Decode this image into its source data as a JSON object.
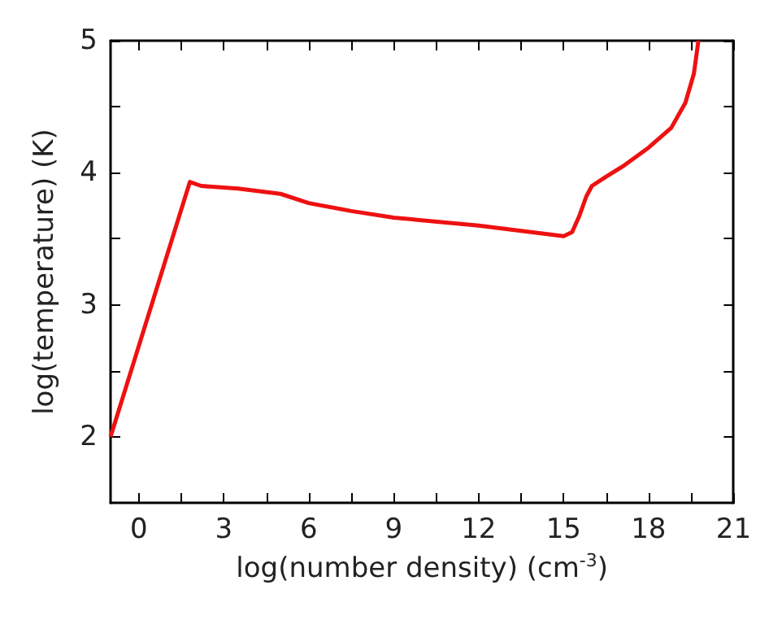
{
  "chart_data": {
    "type": "line",
    "xlabel": "log(number density) (cm$^{-3}$)",
    "ylabel": "log(temperature) (K)",
    "x": [
      -1,
      1.8,
      2.2,
      3.5,
      5,
      6,
      7.5,
      9,
      12,
      15,
      15.3,
      15.55,
      15.8,
      16,
      16.5,
      17.1,
      18,
      18.8,
      19.3,
      19.6,
      19.76
    ],
    "series": [
      {
        "color": "#ee1111",
        "values": [
          2,
          3.93,
          3.9,
          3.88,
          3.84,
          3.77,
          3.71,
          3.66,
          3.6,
          3.52,
          3.55,
          3.67,
          3.82,
          3.9,
          3.97,
          4.05,
          4.19,
          4.34,
          4.53,
          4.75,
          5
        ]
      }
    ],
    "xlim": [
      -1,
      21
    ],
    "ylim": [
      1.5,
      5
    ],
    "xticks": [
      0,
      3,
      6,
      9,
      12,
      15,
      18,
      21
    ],
    "yticks": [
      2,
      3,
      4,
      5
    ],
    "grid": false,
    "marker": "none",
    "line_style": "solid"
  }
}
